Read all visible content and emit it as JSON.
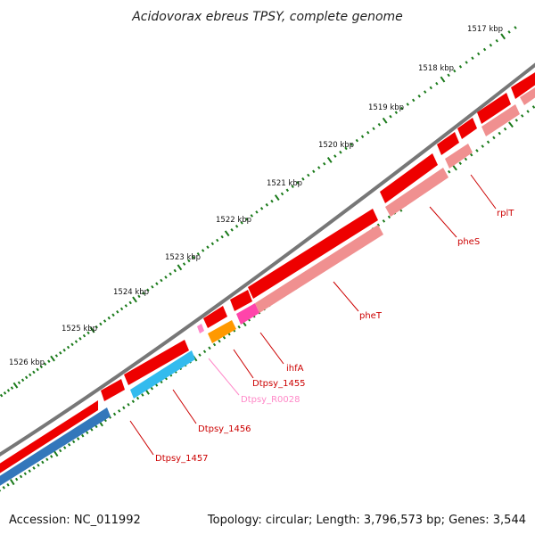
{
  "title": "Acidovorax ebreus TPSY, complete genome",
  "footer": {
    "accession": "Accession: NC_011992",
    "summary": "Topology: circular; Length: 3,796,573 bp; Genes: 3,544"
  },
  "kbp_labels": [
    "1517 kbp",
    "1518 kbp",
    "1519 kbp",
    "1520 kbp",
    "1521 kbp",
    "1522 kbp",
    "1523 kbp",
    "1524 kbp",
    "1525 kbp",
    "1526 kbp"
  ],
  "gene_labels": [
    {
      "text": "rplT",
      "color": "#cc0000"
    },
    {
      "text": "pheS",
      "color": "#cc0000"
    },
    {
      "text": "pheT",
      "color": "#cc0000"
    },
    {
      "text": "ihfA",
      "color": "#cc0000"
    },
    {
      "text": "Dtpsy_1455",
      "color": "#cc0000"
    },
    {
      "text": "Dtpsy_R0028",
      "color": "#ff88c8"
    },
    {
      "text": "Dtpsy_1456",
      "color": "#cc0000"
    },
    {
      "text": "Dtpsy_1457",
      "color": "#cc0000"
    }
  ],
  "colors": {
    "backbone": "#777777",
    "cds_strand": "#ee0000",
    "cds": "#f09090",
    "rRNA": "#ff44aa",
    "tRNA": "#ff9900",
    "misc": "#33bbee",
    "tick": "#1a7a1a"
  }
}
